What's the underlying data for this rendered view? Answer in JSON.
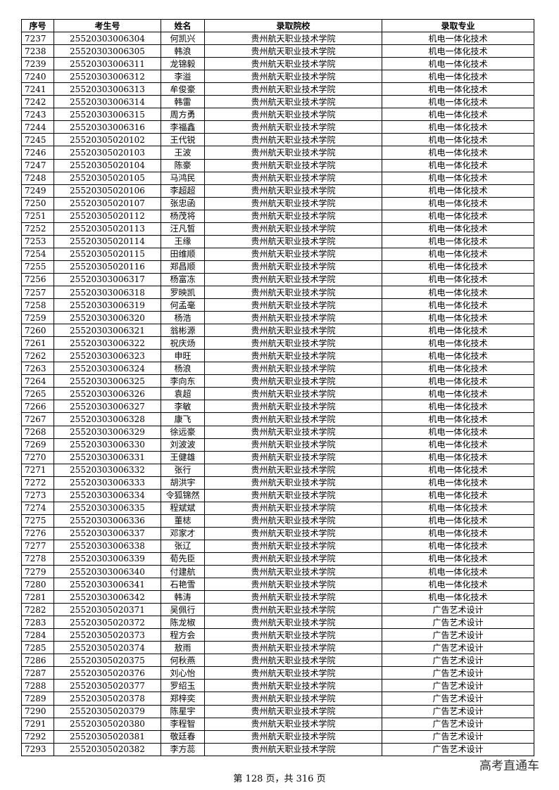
{
  "table": {
    "columns": [
      "序号",
      "考生号",
      "姓名",
      "录取院校",
      "录取专业"
    ],
    "rows": [
      [
        "7237",
        "25520303006304",
        "何凯兴",
        "贵州航天职业技术学院",
        "机电一体化技术"
      ],
      [
        "7238",
        "25520303006305",
        "韩浪",
        "贵州航天职业技术学院",
        "机电一体化技术"
      ],
      [
        "7239",
        "25520303006311",
        "龙锦毅",
        "贵州航天职业技术学院",
        "机电一体化技术"
      ],
      [
        "7240",
        "25520303006312",
        "李溢",
        "贵州航天职业技术学院",
        "机电一体化技术"
      ],
      [
        "7241",
        "25520303006313",
        "牟俊豪",
        "贵州航天职业技术学院",
        "机电一体化技术"
      ],
      [
        "7242",
        "25520303006314",
        "韩雷",
        "贵州航天职业技术学院",
        "机电一体化技术"
      ],
      [
        "7243",
        "25520303006315",
        "周方勇",
        "贵州航天职业技术学院",
        "机电一体化技术"
      ],
      [
        "7244",
        "25520303006316",
        "李福鑫",
        "贵州航天职业技术学院",
        "机电一体化技术"
      ],
      [
        "7245",
        "25520305020102",
        "王代锐",
        "贵州航天职业技术学院",
        "机电一体化技术"
      ],
      [
        "7246",
        "25520305020103",
        "王波",
        "贵州航天职业技术学院",
        "机电一体化技术"
      ],
      [
        "7247",
        "25520305020104",
        "陈豪",
        "贵州航天职业技术学院",
        "机电一体化技术"
      ],
      [
        "7248",
        "25520305020105",
        "马鸿民",
        "贵州航天职业技术学院",
        "机电一体化技术"
      ],
      [
        "7249",
        "25520305020106",
        "李超超",
        "贵州航天职业技术学院",
        "机电一体化技术"
      ],
      [
        "7250",
        "25520305020107",
        "张忠函",
        "贵州航天职业技术学院",
        "机电一体化技术"
      ],
      [
        "7251",
        "25520305020112",
        "杨茂将",
        "贵州航天职业技术学院",
        "机电一体化技术"
      ],
      [
        "7252",
        "25520305020113",
        "汪凡皙",
        "贵州航天职业技术学院",
        "机电一体化技术"
      ],
      [
        "7253",
        "25520305020114",
        "王缘",
        "贵州航天职业技术学院",
        "机电一体化技术"
      ],
      [
        "7254",
        "25520305020115",
        "田维顺",
        "贵州航天职业技术学院",
        "机电一体化技术"
      ],
      [
        "7255",
        "25520305020116",
        "郑昌顺",
        "贵州航天职业技术学院",
        "机电一体化技术"
      ],
      [
        "7256",
        "25520303006317",
        "杨富冻",
        "贵州航天职业技术学院",
        "机电一体化技术"
      ],
      [
        "7257",
        "25520303006318",
        "罗映凯",
        "贵州航天职业技术学院",
        "机电一体化技术"
      ],
      [
        "7258",
        "25520303006319",
        "何孟毫",
        "贵州航天职业技术学院",
        "机电一体化技术"
      ],
      [
        "7259",
        "25520303006320",
        "杨浩",
        "贵州航天职业技术学院",
        "机电一体化技术"
      ],
      [
        "7260",
        "25520303006321",
        "翁彬源",
        "贵州航天职业技术学院",
        "机电一体化技术"
      ],
      [
        "7261",
        "25520303006322",
        "祝庆炀",
        "贵州航天职业技术学院",
        "机电一体化技术"
      ],
      [
        "7262",
        "25520303006323",
        "申旺",
        "贵州航天职业技术学院",
        "机电一体化技术"
      ],
      [
        "7263",
        "25520303006324",
        "杨浪",
        "贵州航天职业技术学院",
        "机电一体化技术"
      ],
      [
        "7264",
        "25520303006325",
        "李向东",
        "贵州航天职业技术学院",
        "机电一体化技术"
      ],
      [
        "7265",
        "25520303006326",
        "袁超",
        "贵州航天职业技术学院",
        "机电一体化技术"
      ],
      [
        "7266",
        "25520303006327",
        "李敏",
        "贵州航天职业技术学院",
        "机电一体化技术"
      ],
      [
        "7267",
        "25520303006328",
        "康飞",
        "贵州航天职业技术学院",
        "机电一体化技术"
      ],
      [
        "7268",
        "25520303006329",
        "徐远豪",
        "贵州航天职业技术学院",
        "机电一体化技术"
      ],
      [
        "7269",
        "25520303006330",
        "刘波波",
        "贵州航天职业技术学院",
        "机电一体化技术"
      ],
      [
        "7270",
        "25520303006331",
        "王健雄",
        "贵州航天职业技术学院",
        "机电一体化技术"
      ],
      [
        "7271",
        "25520303006332",
        "张行",
        "贵州航天职业技术学院",
        "机电一体化技术"
      ],
      [
        "7272",
        "25520303006333",
        "胡洪宇",
        "贵州航天职业技术学院",
        "机电一体化技术"
      ],
      [
        "7273",
        "25520303006334",
        "令狐锦然",
        "贵州航天职业技术学院",
        "机电一体化技术"
      ],
      [
        "7274",
        "25520303006335",
        "程斌斌",
        "贵州航天职业技术学院",
        "机电一体化技术"
      ],
      [
        "7275",
        "25520303006336",
        "董梽",
        "贵州航天职业技术学院",
        "机电一体化技术"
      ],
      [
        "7276",
        "25520303006337",
        "邓家才",
        "贵州航天职业技术学院",
        "机电一体化技术"
      ],
      [
        "7277",
        "25520303006338",
        "张辽",
        "贵州航天职业技术学院",
        "机电一体化技术"
      ],
      [
        "7278",
        "25520303006339",
        "荀先臣",
        "贵州航天职业技术学院",
        "机电一体化技术"
      ],
      [
        "7279",
        "25520303006340",
        "付建航",
        "贵州航天职业技术学院",
        "机电一体化技术"
      ],
      [
        "7280",
        "25520303006341",
        "石艳雪",
        "贵州航天职业技术学院",
        "机电一体化技术"
      ],
      [
        "7281",
        "25520303006342",
        "韩涛",
        "贵州航天职业技术学院",
        "机电一体化技术"
      ],
      [
        "7282",
        "25520305020371",
        "吴佩行",
        "贵州航天职业技术学院",
        "广告艺术设计"
      ],
      [
        "7283",
        "25520305020372",
        "陈龙椒",
        "贵州航天职业技术学院",
        "广告艺术设计"
      ],
      [
        "7284",
        "25520305020373",
        "程方会",
        "贵州航天职业技术学院",
        "广告艺术设计"
      ],
      [
        "7285",
        "25520305020374",
        "敖雨",
        "贵州航天职业技术学院",
        "广告艺术设计"
      ],
      [
        "7286",
        "25520305020375",
        "何秋燕",
        "贵州航天职业技术学院",
        "广告艺术设计"
      ],
      [
        "7287",
        "25520305020376",
        "刘心怡",
        "贵州航天职业技术学院",
        "广告艺术设计"
      ],
      [
        "7288",
        "25520305020377",
        "罗绍玉",
        "贵州航天职业技术学院",
        "广告艺术设计"
      ],
      [
        "7289",
        "25520305020378",
        "郑梓奕",
        "贵州航天职业技术学院",
        "广告艺术设计"
      ],
      [
        "7290",
        "25520305020379",
        "陈星宇",
        "贵州航天职业技术学院",
        "广告艺术设计"
      ],
      [
        "7291",
        "25520305020380",
        "李程智",
        "贵州航天职业技术学院",
        "广告艺术设计"
      ],
      [
        "7292",
        "25520305020381",
        "敬廷春",
        "贵州航天职业技术学院",
        "广告艺术设计"
      ],
      [
        "7293",
        "25520305020382",
        "李方蕊",
        "贵州航天职业技术学院",
        "广告艺术设计"
      ]
    ]
  },
  "footer": {
    "page": "第 128 页，共 316 页",
    "watermark": "高考直通车"
  }
}
